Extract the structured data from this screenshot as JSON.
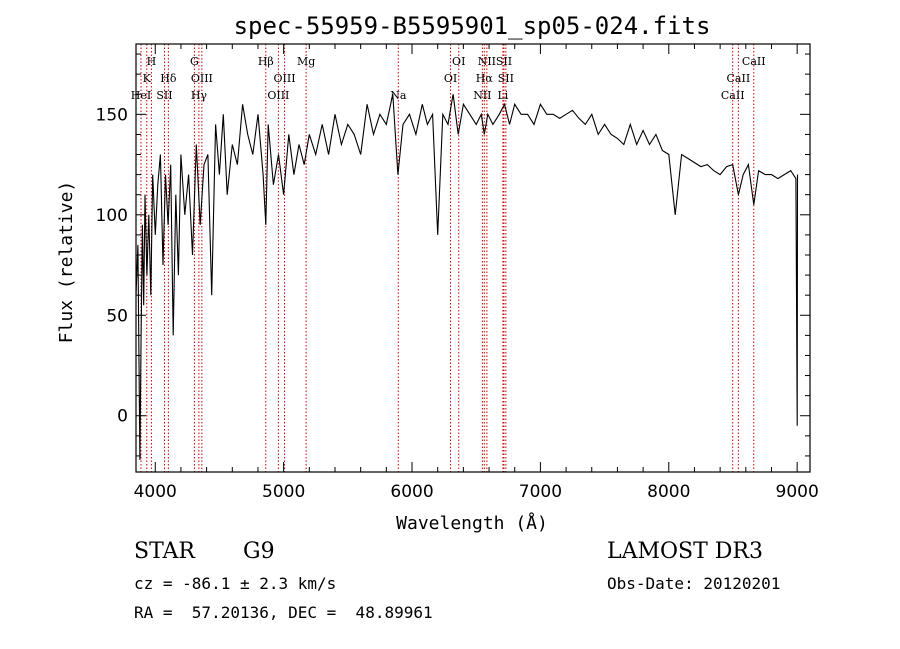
{
  "chart_data": {
    "type": "line",
    "title": "spec-55959-B5595901_sp05-024.fits",
    "xlabel": "Wavelength (Å)",
    "ylabel": "Flux (relative)",
    "xlim": [
      3850,
      9100
    ],
    "ylim": [
      -28,
      185
    ],
    "x_ticks": [
      4000,
      5000,
      6000,
      7000,
      8000,
      9000
    ],
    "y_ticks": [
      0,
      50,
      100,
      150
    ],
    "line_color": "#000000",
    "marker_color": "#cc0000",
    "series": [
      {
        "name": "flux",
        "x": [
          3850,
          3865,
          3880,
          3890,
          3900,
          3910,
          3920,
          3935,
          3950,
          3965,
          3980,
          4000,
          4020,
          4040,
          4060,
          4080,
          4100,
          4120,
          4140,
          4160,
          4180,
          4200,
          4230,
          4260,
          4290,
          4320,
          4350,
          4380,
          4410,
          4440,
          4470,
          4500,
          4530,
          4560,
          4600,
          4640,
          4680,
          4720,
          4760,
          4800,
          4840,
          4861,
          4880,
          4920,
          4960,
          5000,
          5040,
          5080,
          5120,
          5160,
          5200,
          5250,
          5300,
          5350,
          5400,
          5450,
          5500,
          5550,
          5600,
          5650,
          5700,
          5750,
          5800,
          5850,
          5890,
          5930,
          5980,
          6030,
          6080,
          6120,
          6160,
          6200,
          6240,
          6280,
          6320,
          6360,
          6400,
          6450,
          6500,
          6540,
          6563,
          6590,
          6630,
          6680,
          6720,
          6760,
          6800,
          6850,
          6900,
          6950,
          7000,
          7050,
          7100,
          7150,
          7200,
          7250,
          7300,
          7350,
          7400,
          7450,
          7500,
          7550,
          7600,
          7650,
          7700,
          7750,
          7800,
          7850,
          7900,
          7950,
          8000,
          8050,
          8100,
          8150,
          8200,
          8250,
          8300,
          8350,
          8400,
          8450,
          8498,
          8542,
          8580,
          8620,
          8662,
          8700,
          8750,
          8800,
          8850,
          8900,
          8950,
          8990,
          9000,
          9003
        ],
        "values": [
          60,
          85,
          -22,
          40,
          95,
          55,
          110,
          70,
          100,
          60,
          120,
          90,
          115,
          130,
          75,
          120,
          95,
          125,
          40,
          110,
          70,
          130,
          100,
          120,
          80,
          135,
          95,
          125,
          130,
          60,
          145,
          120,
          150,
          110,
          135,
          125,
          155,
          140,
          130,
          150,
          120,
          95,
          145,
          115,
          130,
          110,
          140,
          120,
          135,
          125,
          140,
          130,
          145,
          130,
          150,
          135,
          145,
          140,
          130,
          155,
          140,
          150,
          145,
          160,
          120,
          145,
          150,
          140,
          155,
          145,
          150,
          90,
          150,
          145,
          160,
          140,
          155,
          150,
          145,
          150,
          140,
          150,
          145,
          150,
          155,
          145,
          155,
          150,
          150,
          145,
          155,
          150,
          150,
          148,
          150,
          152,
          148,
          145,
          150,
          140,
          145,
          140,
          138,
          135,
          145,
          135,
          142,
          135,
          140,
          132,
          130,
          100,
          130,
          128,
          126,
          124,
          125,
          122,
          120,
          124,
          125,
          110,
          120,
          125,
          105,
          122,
          120,
          120,
          118,
          120,
          122,
          118,
          -5,
          120
        ]
      }
    ],
    "line_markers": [
      {
        "label": "H",
        "wavelength": 3970,
        "row": 0
      },
      {
        "label": "K",
        "wavelength": 3934,
        "row": 1
      },
      {
        "label": "HeI",
        "wavelength": 3889,
        "row": 2
      },
      {
        "label": "SII",
        "wavelength": 4072,
        "row": 2
      },
      {
        "label": "Hδ",
        "wavelength": 4102,
        "row": 1
      },
      {
        "label": "G",
        "wavelength": 4305,
        "row": 0
      },
      {
        "label": "OIII",
        "wavelength": 4363,
        "row": 1
      },
      {
        "label": "Hγ",
        "wavelength": 4340,
        "row": 2
      },
      {
        "label": "Hβ",
        "wavelength": 4861,
        "row": 0
      },
      {
        "label": "OIII",
        "wavelength": 4959,
        "row": 2
      },
      {
        "label": "OIII",
        "wavelength": 5007,
        "row": 1
      },
      {
        "label": "Mg",
        "wavelength": 5175,
        "row": 0
      },
      {
        "label": "Na",
        "wavelength": 5893,
        "row": 2
      },
      {
        "label": "OI",
        "wavelength": 6300,
        "row": 1
      },
      {
        "label": "OI",
        "wavelength": 6364,
        "row": 0
      },
      {
        "label": "NII",
        "wavelength": 6548,
        "row": 2
      },
      {
        "label": "Hα",
        "wavelength": 6563,
        "row": 1
      },
      {
        "label": "NII",
        "wavelength": 6583,
        "row": 0
      },
      {
        "label": "SII",
        "wavelength": 6716,
        "row": 0
      },
      {
        "label": "SII",
        "wavelength": 6731,
        "row": 1
      },
      {
        "label": "Li",
        "wavelength": 6708,
        "row": 2
      },
      {
        "label": "CaII",
        "wavelength": 8498,
        "row": 2
      },
      {
        "label": "CaII",
        "wavelength": 8542,
        "row": 1
      },
      {
        "label": "CaII",
        "wavelength": 8662,
        "row": 0
      }
    ]
  },
  "info": {
    "class_label": "STAR",
    "subclass": "G9",
    "survey": "LAMOST DR3",
    "cz": "cz = -86.1 ± 2.3 km/s",
    "obs_date": "Obs-Date: 20120201",
    "coords": "RA =  57.20136, DEC =  48.89961"
  }
}
